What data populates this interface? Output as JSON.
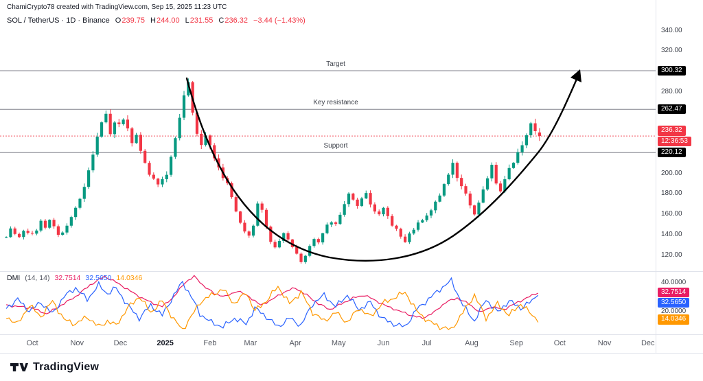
{
  "watermark": "ChamiCrypto78 created with TradingView.com, Sep 15, 2025 11:23 UTC",
  "legend": {
    "title": "SOL / TetherUS · 1D · Binance",
    "ohlc": {
      "o_label": "O",
      "o": "239.75",
      "h_label": "H",
      "h": "244.00",
      "l_label": "L",
      "l": "231.55",
      "c_label": "C",
      "c": "236.32"
    },
    "change": "−3.44 (−1.43%)"
  },
  "dmi_legend": {
    "title": "DMI",
    "params": "(14, 14)",
    "values": [
      {
        "name": "adx",
        "label": "32.7514",
        "value": 32.7514,
        "color": "#e91e63"
      },
      {
        "name": "plus-di",
        "label": "32.5650",
        "value": 32.565,
        "color": "#2962ff"
      },
      {
        "name": "minus-di",
        "label": "14.0346",
        "value": 14.0346,
        "color": "#ff9800"
      }
    ]
  },
  "price_axis": {
    "ticks": [
      {
        "label": "340.00",
        "value": 340
      },
      {
        "label": "320.00",
        "value": 320
      },
      {
        "label": "280.00",
        "value": 280
      },
      {
        "label": "240.00",
        "value": 240
      },
      {
        "label": "200.00",
        "value": 200
      },
      {
        "label": "180.00",
        "value": 180
      },
      {
        "label": "160.00",
        "value": 160
      },
      {
        "label": "140.00",
        "value": 140
      },
      {
        "label": "120.00",
        "value": 120
      }
    ]
  },
  "dmi_axis": {
    "ticks": [
      {
        "label": "40.0000",
        "value": 40
      },
      {
        "label": "20.0000",
        "value": 20
      }
    ]
  },
  "time_axis": {
    "labels": [
      {
        "label": "Oct",
        "day": 0
      },
      {
        "label": "Nov",
        "day": 31
      },
      {
        "label": "Dec",
        "day": 61
      },
      {
        "label": "2025",
        "day": 92,
        "emphasis": true
      },
      {
        "label": "Feb",
        "day": 123
      },
      {
        "label": "Mar",
        "day": 151
      },
      {
        "label": "Apr",
        "day": 182
      },
      {
        "label": "May",
        "day": 212
      },
      {
        "label": "Jun",
        "day": 243
      },
      {
        "label": "Jul",
        "day": 273
      },
      {
        "label": "Aug",
        "day": 304
      },
      {
        "label": "Sep",
        "day": 335
      },
      {
        "label": "Oct",
        "day": 365
      },
      {
        "label": "Nov",
        "day": 396
      },
      {
        "label": "Dec",
        "day": 426
      }
    ]
  },
  "footer": {
    "brand": "TradingView"
  },
  "colors": {
    "up": "#089981",
    "down": "#f23645",
    "level_line": "#80828c",
    "level_badge": "#000000",
    "annotation": "#000000",
    "grid": "#e0e3eb",
    "axis_text": "#3a3e47"
  },
  "chart_data": {
    "type": "candlestick",
    "symbol": "SOL/TetherUS",
    "exchange": "Binance",
    "interval": "1D",
    "title": "SOL / TetherUS · 1D · Binance",
    "x_axis_range": "Sep 2024 – Dec 2025 (data ends mid-Sep 2025)",
    "price_ylim": [
      107,
      352
    ],
    "levels": [
      {
        "name": "target",
        "label": "Target",
        "value": 300.32,
        "price_label": "300.32"
      },
      {
        "name": "key-resistance",
        "label": "Key resistance",
        "value": 262.47,
        "price_label": "262.47"
      },
      {
        "name": "support",
        "label": "Support",
        "value": 220.12,
        "price_label": "220.12"
      }
    ],
    "last_price": {
      "value": 236.32,
      "label": "236.32",
      "countdown": "12:36:53"
    },
    "last_candle": {
      "open": 239.75,
      "high": 244.0,
      "low": 231.55,
      "close": 236.32,
      "change": -3.44,
      "change_pct": -1.43
    },
    "annotation": {
      "name": "cup-and-arrow",
      "description": "Black rounded-bottom curve from the January peak (~295) through the April–June base (~110-150), curving up through current price and ending in an arrow pointing at the Target level 300.32"
    },
    "candles": {
      "note": "approximate closes read from chart, day 0 = Oct 1 2024, one value per 3 days",
      "start_day": -18,
      "step_days": 3,
      "closes": [
        138,
        146,
        141,
        136,
        143,
        140,
        140,
        145,
        152,
        148,
        155,
        147,
        139,
        143,
        150,
        158,
        166,
        175,
        188,
        205,
        220,
        235,
        248,
        260,
        240,
        252,
        245,
        255,
        242,
        230,
        236,
        220,
        210,
        200,
        195,
        188,
        192,
        200,
        215,
        235,
        255,
        275,
        292,
        262,
        240,
        228,
        238,
        228,
        215,
        205,
        196,
        190,
        176,
        162,
        150,
        142,
        140,
        148,
        170,
        162,
        148,
        134,
        126,
        132,
        140,
        134,
        128,
        120,
        112,
        118,
        130,
        136,
        132,
        140,
        148,
        152,
        150,
        158,
        170,
        180,
        176,
        168,
        174,
        180,
        170,
        162,
        158,
        166,
        158,
        150,
        144,
        138,
        132,
        140,
        146,
        150,
        152,
        158,
        165,
        172,
        180,
        190,
        200,
        208,
        196,
        186,
        180,
        168,
        160,
        172,
        184,
        196,
        206,
        192,
        182,
        194,
        204,
        212,
        220,
        228,
        238,
        248,
        240
      ]
    },
    "dmi": {
      "name": "DMI (14, 14)",
      "ylim": [
        0,
        50
      ],
      "series": [
        {
          "name": "ADX",
          "color": "#e91e63",
          "last": 32.7514,
          "jitter": 0.9,
          "points": [
            [
              -18,
              24
            ],
            [
              0,
              22
            ],
            [
              10,
              18
            ],
            [
              20,
              24
            ],
            [
              30,
              30
            ],
            [
              40,
              38
            ],
            [
              50,
              44
            ],
            [
              58,
              40
            ],
            [
              66,
              35
            ],
            [
              74,
              30
            ],
            [
              82,
              26
            ],
            [
              90,
              23
            ],
            [
              98,
              30
            ],
            [
              106,
              40
            ],
            [
              112,
              44
            ],
            [
              118,
              38
            ],
            [
              126,
              32
            ],
            [
              134,
              30
            ],
            [
              142,
              34
            ],
            [
              150,
              30
            ],
            [
              158,
              24
            ],
            [
              166,
              28
            ],
            [
              174,
              33
            ],
            [
              182,
              36
            ],
            [
              190,
              31
            ],
            [
              198,
              25
            ],
            [
              206,
              21
            ],
            [
              214,
              25
            ],
            [
              222,
              29
            ],
            [
              230,
              31
            ],
            [
              238,
              27
            ],
            [
              246,
              23
            ],
            [
              254,
              20
            ],
            [
              262,
              17
            ],
            [
              270,
              15
            ],
            [
              278,
              19
            ],
            [
              286,
              26
            ],
            [
              294,
              29
            ],
            [
              302,
              25
            ],
            [
              310,
              19
            ],
            [
              318,
              23
            ],
            [
              326,
              21
            ],
            [
              334,
              25
            ],
            [
              342,
              29
            ],
            [
              350,
              32.75
            ]
          ]
        },
        {
          "name": "+DI",
          "color": "#2962ff",
          "last": 32.565,
          "jitter": 2.2,
          "points": [
            [
              -18,
              22
            ],
            [
              -10,
              28
            ],
            [
              -2,
              20
            ],
            [
              6,
              26
            ],
            [
              14,
              18
            ],
            [
              22,
              30
            ],
            [
              30,
              36
            ],
            [
              38,
              28
            ],
            [
              46,
              38
            ],
            [
              52,
              32
            ],
            [
              58,
              36
            ],
            [
              66,
              24
            ],
            [
              74,
              15
            ],
            [
              82,
              24
            ],
            [
              90,
              17
            ],
            [
              98,
              31
            ],
            [
              104,
              40
            ],
            [
              110,
              30
            ],
            [
              116,
              18
            ],
            [
              124,
              12
            ],
            [
              132,
              9
            ],
            [
              140,
              15
            ],
            [
              148,
              11
            ],
            [
              154,
              22
            ],
            [
              162,
              16
            ],
            [
              170,
              9
            ],
            [
              178,
              15
            ],
            [
              186,
              10
            ],
            [
              194,
              25
            ],
            [
              202,
              31
            ],
            [
              210,
              23
            ],
            [
              218,
              31
            ],
            [
              226,
              21
            ],
            [
              234,
              26
            ],
            [
              242,
              15
            ],
            [
              250,
              11
            ],
            [
              258,
              9
            ],
            [
              266,
              21
            ],
            [
              274,
              28
            ],
            [
              282,
              35
            ],
            [
              290,
              41
            ],
            [
              298,
              24
            ],
            [
              306,
              13
            ],
            [
              314,
              28
            ],
            [
              322,
              19
            ],
            [
              330,
              27
            ],
            [
              338,
              22
            ],
            [
              346,
              27
            ],
            [
              350,
              32.57
            ]
          ]
        },
        {
          "name": "-DI",
          "color": "#ff9800",
          "last": 14.0346,
          "jitter": 2.2,
          "points": [
            [
              -18,
              16
            ],
            [
              -10,
              11
            ],
            [
              -2,
              24
            ],
            [
              6,
              16
            ],
            [
              14,
              27
            ],
            [
              22,
              14
            ],
            [
              30,
              11
            ],
            [
              38,
              16
            ],
            [
              46,
              9
            ],
            [
              52,
              13
            ],
            [
              58,
              10
            ],
            [
              66,
              22
            ],
            [
              74,
              30
            ],
            [
              82,
              19
            ],
            [
              90,
              27
            ],
            [
              98,
              14
            ],
            [
              104,
              7
            ],
            [
              110,
              16
            ],
            [
              116,
              26
            ],
            [
              124,
              31
            ],
            [
              132,
              35
            ],
            [
              140,
              25
            ],
            [
              148,
              33
            ],
            [
              154,
              20
            ],
            [
              162,
              27
            ],
            [
              170,
              37
            ],
            [
              178,
              25
            ],
            [
              186,
              33
            ],
            [
              194,
              19
            ],
            [
              202,
              13
            ],
            [
              210,
              19
            ],
            [
              218,
              12
            ],
            [
              226,
              22
            ],
            [
              234,
              16
            ],
            [
              242,
              25
            ],
            [
              250,
              29
            ],
            [
              258,
              33
            ],
            [
              266,
              20
            ],
            [
              274,
              13
            ],
            [
              282,
              9
            ],
            [
              290,
              7
            ],
            [
              298,
              19
            ],
            [
              306,
              31
            ],
            [
              314,
              15
            ],
            [
              322,
              25
            ],
            [
              330,
              17
            ],
            [
              338,
              25
            ],
            [
              346,
              17
            ],
            [
              350,
              14.03
            ]
          ]
        }
      ]
    }
  }
}
